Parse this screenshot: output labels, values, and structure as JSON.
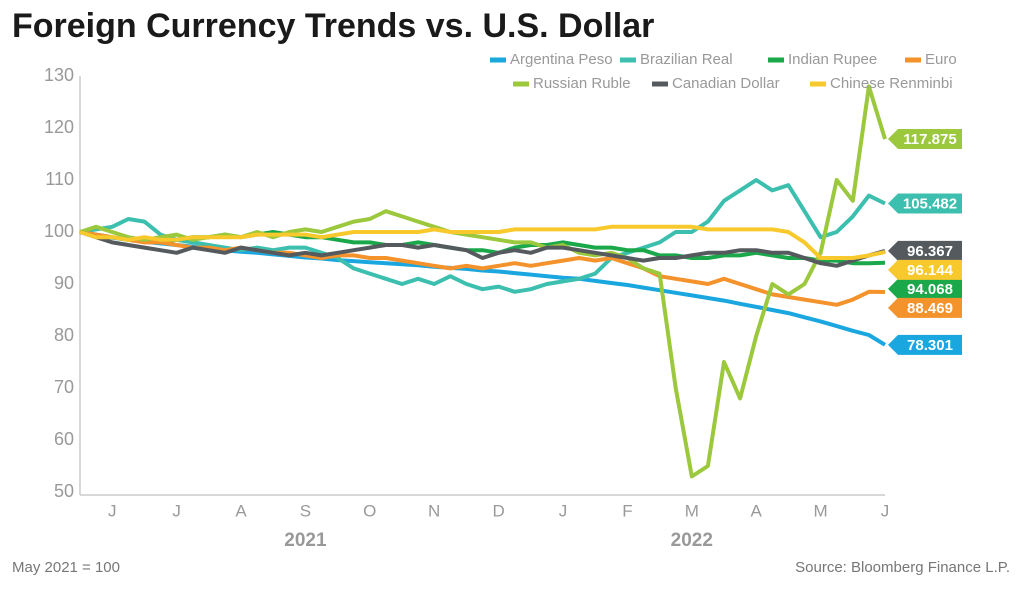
{
  "chart_data": {
    "type": "line",
    "title": "Foreign Currency Trends vs. U.S. Dollar",
    "footnote": "May 2021 = 100",
    "source": "Source: Bloomberg Finance L.P.",
    "year_labels": [
      "2021",
      "2022"
    ],
    "legend": "top-right",
    "grid": false,
    "ylim": [
      50,
      130
    ],
    "yticks": [
      50,
      60,
      70,
      80,
      90,
      100,
      110,
      120,
      130
    ],
    "categories": [
      null,
      null,
      "J",
      null,
      null,
      null,
      "J",
      null,
      null,
      null,
      "A",
      null,
      null,
      null,
      "S",
      null,
      null,
      null,
      "O",
      null,
      null,
      null,
      "N",
      null,
      null,
      null,
      "D",
      null,
      null,
      null,
      "J",
      null,
      null,
      null,
      "F",
      null,
      null,
      null,
      "M",
      null,
      null,
      null,
      "A",
      null,
      null,
      null,
      "M",
      null,
      null,
      null,
      "J"
    ],
    "series": [
      {
        "name": "Argentina Peso",
        "color": "#1aa7e0",
        "values": [
          100,
          99.2,
          98.9,
          98.5,
          98.1,
          97.8,
          97.5,
          97.2,
          96.8,
          96.5,
          96.2,
          96,
          95.7,
          95.4,
          95.1,
          94.9,
          94.6,
          94.4,
          94.2,
          94,
          93.8,
          93.6,
          93.3,
          93.1,
          92.9,
          92.6,
          92.4,
          92.1,
          91.8,
          91.5,
          91.2,
          91,
          90.6,
          90.2,
          89.8,
          89.3,
          88.8,
          88.3,
          87.8,
          87.3,
          86.8,
          86.2,
          85.6,
          85,
          84.4,
          83.6,
          82.8,
          81.9,
          81,
          80.2,
          78.301
        ]
      },
      {
        "name": "Brazilian Real",
        "color": "#3cbfae",
        "values": [
          100,
          100.5,
          101,
          102.5,
          102,
          99.5,
          98.5,
          98,
          97.5,
          97,
          96.5,
          97,
          96.5,
          97,
          97,
          96,
          95,
          93,
          92,
          91,
          90,
          91,
          90,
          91.5,
          90,
          89,
          89.5,
          88.5,
          89,
          90,
          90.5,
          91,
          92,
          95,
          96,
          97,
          98,
          100,
          100,
          102,
          106,
          108,
          110,
          108,
          109,
          104,
          99,
          100,
          103,
          107,
          105.482
        ]
      },
      {
        "name": "Indian Rupee",
        "color": "#1aa84a",
        "values": [
          100,
          99.5,
          99,
          98.5,
          98.5,
          98,
          98.5,
          99,
          99,
          99.5,
          99,
          99.5,
          100,
          99.5,
          99,
          99,
          98.5,
          98,
          98,
          97.5,
          97.5,
          98,
          97.5,
          97,
          96.5,
          96.5,
          96,
          97,
          97.5,
          97.5,
          98,
          97.5,
          97,
          97,
          96.5,
          96.5,
          95.5,
          95.5,
          95,
          95,
          95.5,
          95.5,
          96,
          95.5,
          95,
          95,
          94.5,
          94.5,
          94,
          94,
          94.068
        ]
      },
      {
        "name": "Euro",
        "color": "#f4922c",
        "values": [
          100,
          99.5,
          99,
          98.5,
          98,
          98,
          97.5,
          97,
          97,
          96.5,
          97,
          96.5,
          96,
          96,
          95.5,
          95,
          95.5,
          95.5,
          95,
          95,
          94.5,
          94,
          93.5,
          93,
          93.5,
          93,
          93.5,
          94,
          93.5,
          94,
          94.5,
          95,
          94.5,
          95,
          94,
          93,
          91.5,
          91,
          90.5,
          90,
          91,
          90,
          89,
          88,
          87.5,
          87,
          86.5,
          86,
          87,
          88.5,
          88.469
        ]
      },
      {
        "name": "Russian Ruble",
        "color": "#9bc83c",
        "values": [
          100,
          101,
          100,
          99,
          98.5,
          99,
          99.5,
          98.5,
          99,
          99.5,
          99,
          100,
          99,
          100,
          100.5,
          100,
          101,
          102,
          102.5,
          104,
          103,
          102,
          101,
          100,
          99.5,
          99,
          98.5,
          98,
          98,
          97,
          97.5,
          96,
          95.5,
          96,
          95,
          93,
          92,
          70,
          53,
          55,
          75,
          68,
          80,
          90,
          88,
          90,
          96,
          110,
          106,
          128,
          117.875
        ]
      },
      {
        "name": "Canadian Dollar",
        "color": "#555a5e",
        "values": [
          100,
          99,
          98,
          97.5,
          97,
          96.5,
          96,
          97,
          96.5,
          96,
          97,
          96.5,
          96,
          95.5,
          96,
          95.5,
          96,
          96.5,
          97,
          97.5,
          97.5,
          97,
          97.5,
          97,
          96.5,
          95,
          96,
          96.5,
          96,
          97,
          97,
          96.5,
          96,
          95.5,
          95,
          94.5,
          95,
          95,
          95.5,
          96,
          96,
          96.5,
          96.5,
          96,
          96,
          95,
          94,
          93.5,
          94.5,
          95.5,
          96.367
        ]
      },
      {
        "name": "Chinese Renminbi",
        "color": "#f8c92c",
        "values": [
          100,
          99,
          99,
          98.5,
          99,
          98.5,
          98.5,
          99,
          99,
          99,
          99,
          99.5,
          99.5,
          99.5,
          99.5,
          99,
          99.5,
          100,
          100,
          100,
          100,
          100,
          100.5,
          100,
          100,
          100,
          100,
          100.5,
          100.5,
          100.5,
          100.5,
          100.5,
          100.5,
          101,
          101,
          101,
          101,
          101,
          101,
          100.5,
          100.5,
          100.5,
          100.5,
          100.5,
          100,
          98,
          95,
          95,
          95,
          95.5,
          96.144
        ]
      }
    ]
  }
}
